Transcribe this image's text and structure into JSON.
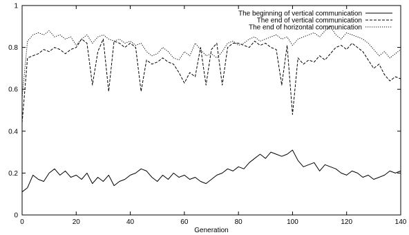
{
  "chart_data": {
    "type": "line",
    "title": "",
    "xlabel": "Generation",
    "ylabel": "",
    "xlim": [
      0,
      140
    ],
    "ylim": [
      0,
      1
    ],
    "xticks": [
      0,
      20,
      40,
      60,
      80,
      100,
      120,
      140
    ],
    "yticks": [
      0,
      0.2,
      0.4,
      0.6,
      0.8,
      1
    ],
    "xtick_labels": [
      "0",
      "20",
      "40",
      "60",
      "80",
      "100",
      "120",
      "140"
    ],
    "ytick_labels": [
      "0",
      "0.2",
      "0.4",
      "0.6",
      "0.8",
      "1"
    ],
    "grid": false,
    "legend_position": "top-right",
    "series": [
      {
        "name": "The beginning of vertical communication",
        "style": "solid",
        "x": [
          0,
          2,
          4,
          6,
          8,
          10,
          12,
          14,
          16,
          18,
          20,
          22,
          24,
          26,
          28,
          30,
          32,
          34,
          36,
          38,
          40,
          42,
          44,
          46,
          48,
          50,
          52,
          54,
          56,
          58,
          60,
          62,
          64,
          66,
          68,
          70,
          72,
          74,
          76,
          78,
          80,
          82,
          84,
          86,
          88,
          90,
          92,
          94,
          96,
          98,
          100,
          102,
          104,
          106,
          108,
          110,
          112,
          114,
          116,
          118,
          120,
          122,
          124,
          126,
          128,
          130,
          132,
          134,
          136,
          138,
          140
        ],
        "y": [
          0.11,
          0.13,
          0.19,
          0.17,
          0.16,
          0.2,
          0.22,
          0.19,
          0.21,
          0.18,
          0.19,
          0.17,
          0.2,
          0.15,
          0.18,
          0.16,
          0.19,
          0.14,
          0.16,
          0.17,
          0.19,
          0.2,
          0.22,
          0.21,
          0.18,
          0.16,
          0.19,
          0.17,
          0.2,
          0.18,
          0.19,
          0.17,
          0.18,
          0.16,
          0.15,
          0.17,
          0.19,
          0.2,
          0.22,
          0.21,
          0.23,
          0.22,
          0.25,
          0.27,
          0.29,
          0.27,
          0.3,
          0.29,
          0.28,
          0.29,
          0.31,
          0.26,
          0.23,
          0.24,
          0.25,
          0.21,
          0.24,
          0.23,
          0.22,
          0.2,
          0.19,
          0.21,
          0.2,
          0.18,
          0.19,
          0.17,
          0.18,
          0.19,
          0.21,
          0.2,
          0.21
        ]
      },
      {
        "name": "The end of vertical communication",
        "style": "dashed",
        "x": [
          0,
          2,
          4,
          6,
          8,
          10,
          12,
          14,
          16,
          18,
          20,
          22,
          24,
          26,
          28,
          30,
          32,
          34,
          36,
          38,
          40,
          42,
          44,
          46,
          48,
          50,
          52,
          54,
          56,
          58,
          60,
          62,
          64,
          66,
          68,
          70,
          72,
          74,
          76,
          78,
          80,
          82,
          84,
          86,
          88,
          90,
          92,
          94,
          96,
          98,
          100,
          102,
          104,
          106,
          108,
          110,
          112,
          114,
          116,
          118,
          120,
          122,
          124,
          126,
          128,
          130,
          132,
          134,
          136,
          138,
          140
        ],
        "y": [
          0.44,
          0.75,
          0.76,
          0.77,
          0.79,
          0.78,
          0.8,
          0.79,
          0.77,
          0.79,
          0.8,
          0.84,
          0.82,
          0.62,
          0.78,
          0.84,
          0.59,
          0.83,
          0.82,
          0.8,
          0.82,
          0.8,
          0.59,
          0.74,
          0.72,
          0.73,
          0.75,
          0.73,
          0.72,
          0.68,
          0.63,
          0.68,
          0.66,
          0.8,
          0.62,
          0.79,
          0.82,
          0.62,
          0.8,
          0.82,
          0.82,
          0.81,
          0.8,
          0.83,
          0.81,
          0.82,
          0.8,
          0.79,
          0.62,
          0.81,
          0.48,
          0.75,
          0.72,
          0.74,
          0.73,
          0.76,
          0.74,
          0.77,
          0.8,
          0.81,
          0.79,
          0.82,
          0.8,
          0.78,
          0.74,
          0.7,
          0.72,
          0.67,
          0.64,
          0.66,
          0.65
        ]
      },
      {
        "name": "The end of horizontal communication",
        "style": "dotted",
        "x": [
          0,
          2,
          4,
          6,
          8,
          10,
          12,
          14,
          16,
          18,
          20,
          22,
          24,
          26,
          28,
          30,
          32,
          34,
          36,
          38,
          40,
          42,
          44,
          46,
          48,
          50,
          52,
          54,
          56,
          58,
          60,
          62,
          64,
          66,
          68,
          70,
          72,
          74,
          76,
          78,
          80,
          82,
          84,
          86,
          88,
          90,
          92,
          94,
          96,
          98,
          100,
          102,
          104,
          106,
          108,
          110,
          112,
          114,
          116,
          118,
          120,
          122,
          124,
          126,
          128,
          130,
          132,
          134,
          136,
          138,
          140
        ],
        "y": [
          0.56,
          0.83,
          0.86,
          0.87,
          0.86,
          0.88,
          0.85,
          0.86,
          0.84,
          0.85,
          0.81,
          0.84,
          0.86,
          0.82,
          0.85,
          0.86,
          0.84,
          0.83,
          0.84,
          0.82,
          0.83,
          0.81,
          0.82,
          0.78,
          0.76,
          0.77,
          0.8,
          0.78,
          0.75,
          0.74,
          0.78,
          0.76,
          0.82,
          0.79,
          0.76,
          0.77,
          0.75,
          0.78,
          0.82,
          0.83,
          0.81,
          0.82,
          0.84,
          0.85,
          0.83,
          0.84,
          0.85,
          0.86,
          0.84,
          0.85,
          0.81,
          0.84,
          0.85,
          0.86,
          0.87,
          0.85,
          0.88,
          0.9,
          0.86,
          0.84,
          0.87,
          0.86,
          0.85,
          0.84,
          0.82,
          0.79,
          0.76,
          0.78,
          0.75,
          0.77,
          0.79
        ]
      }
    ]
  }
}
